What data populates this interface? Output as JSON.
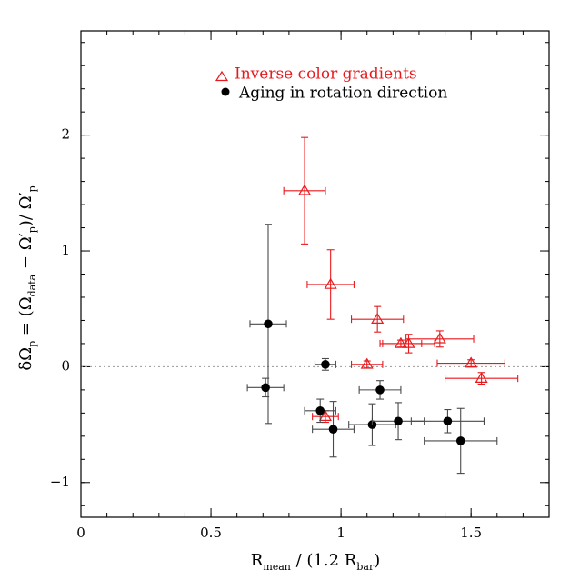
{
  "chart_data": {
    "type": "scatter",
    "xlabel": {
      "main": "R",
      "sub1": "mean",
      "mid": " / (1.2 R",
      "sub2": "bar",
      "end": ")"
    },
    "ylabel": {
      "p1": "δΩ",
      "s1": "p",
      "p2": " = (Ω",
      "s2": "data",
      "p3": " − Ω′",
      "s3": "p",
      "p4": ")/ Ω′",
      "s4": "p"
    },
    "xlim": [
      0,
      1.8
    ],
    "ylim": [
      -1.3,
      2.9
    ],
    "xticks": [
      {
        "value": 0,
        "label": "0"
      },
      {
        "value": 0.5,
        "label": "0.5"
      },
      {
        "value": 1,
        "label": "1"
      },
      {
        "value": 1.5,
        "label": "1.5"
      }
    ],
    "yticks": [
      {
        "value": -1,
        "label": "−1"
      },
      {
        "value": 0,
        "label": "0"
      },
      {
        "value": 1,
        "label": "1"
      },
      {
        "value": 2,
        "label": "2"
      }
    ],
    "x_minor_step": 0.1,
    "y_minor_step": 0.2,
    "reference_line_y": 0,
    "legend_position": "top-right",
    "series": [
      {
        "name": "Inverse color gradients",
        "marker": "triangle-open",
        "color": "#e8191c",
        "errcolor": "#e8191c",
        "points": [
          {
            "x": 0.86,
            "y": 1.52,
            "xerr": 0.08,
            "yerr": 0.46
          },
          {
            "x": 0.96,
            "y": 0.71,
            "xerr": 0.09,
            "yerr": 0.3
          },
          {
            "x": 1.14,
            "y": 0.41,
            "xerr": 0.1,
            "yerr": 0.11
          },
          {
            "x": 1.23,
            "y": 0.2,
            "xerr": 0.08,
            "yerr": 0.03
          },
          {
            "x": 1.26,
            "y": 0.2,
            "xerr": 0.1,
            "yerr": 0.08
          },
          {
            "x": 1.38,
            "y": 0.24,
            "xerr": 0.13,
            "yerr": 0.07
          },
          {
            "x": 1.5,
            "y": 0.03,
            "xerr": 0.13,
            "yerr": 0.03
          },
          {
            "x": 1.54,
            "y": -0.1,
            "xerr": 0.14,
            "yerr": 0.05
          },
          {
            "x": 1.1,
            "y": 0.02,
            "xerr": 0.06,
            "yerr": 0.03
          },
          {
            "x": 0.94,
            "y": -0.43,
            "xerr": 0.05,
            "yerr": 0.05
          }
        ]
      },
      {
        "name": "Aging in rotation direction",
        "marker": "circle-filled",
        "color": "#000000",
        "errcolor": "#4a4a4a",
        "points": [
          {
            "x": 0.72,
            "y": 0.37,
            "xerr": 0.07,
            "yerr": 0.86
          },
          {
            "x": 0.71,
            "y": -0.18,
            "xerr": 0.07,
            "yerr": 0.08
          },
          {
            "x": 0.94,
            "y": 0.02,
            "xerr": 0.04,
            "yerr": 0.05
          },
          {
            "x": 0.92,
            "y": -0.38,
            "xerr": 0.06,
            "yerr": 0.1
          },
          {
            "x": 0.97,
            "y": -0.54,
            "xerr": 0.08,
            "yerr": 0.24
          },
          {
            "x": 1.15,
            "y": -0.2,
            "xerr": 0.08,
            "yerr": 0.08
          },
          {
            "x": 1.12,
            "y": -0.5,
            "xerr": 0.09,
            "yerr": 0.18
          },
          {
            "x": 1.22,
            "y": -0.47,
            "xerr": 0.1,
            "yerr": 0.16
          },
          {
            "x": 1.41,
            "y": -0.47,
            "xerr": 0.14,
            "yerr": 0.1
          },
          {
            "x": 1.46,
            "y": -0.64,
            "xerr": 0.14,
            "yerr": 0.28
          }
        ]
      }
    ]
  }
}
